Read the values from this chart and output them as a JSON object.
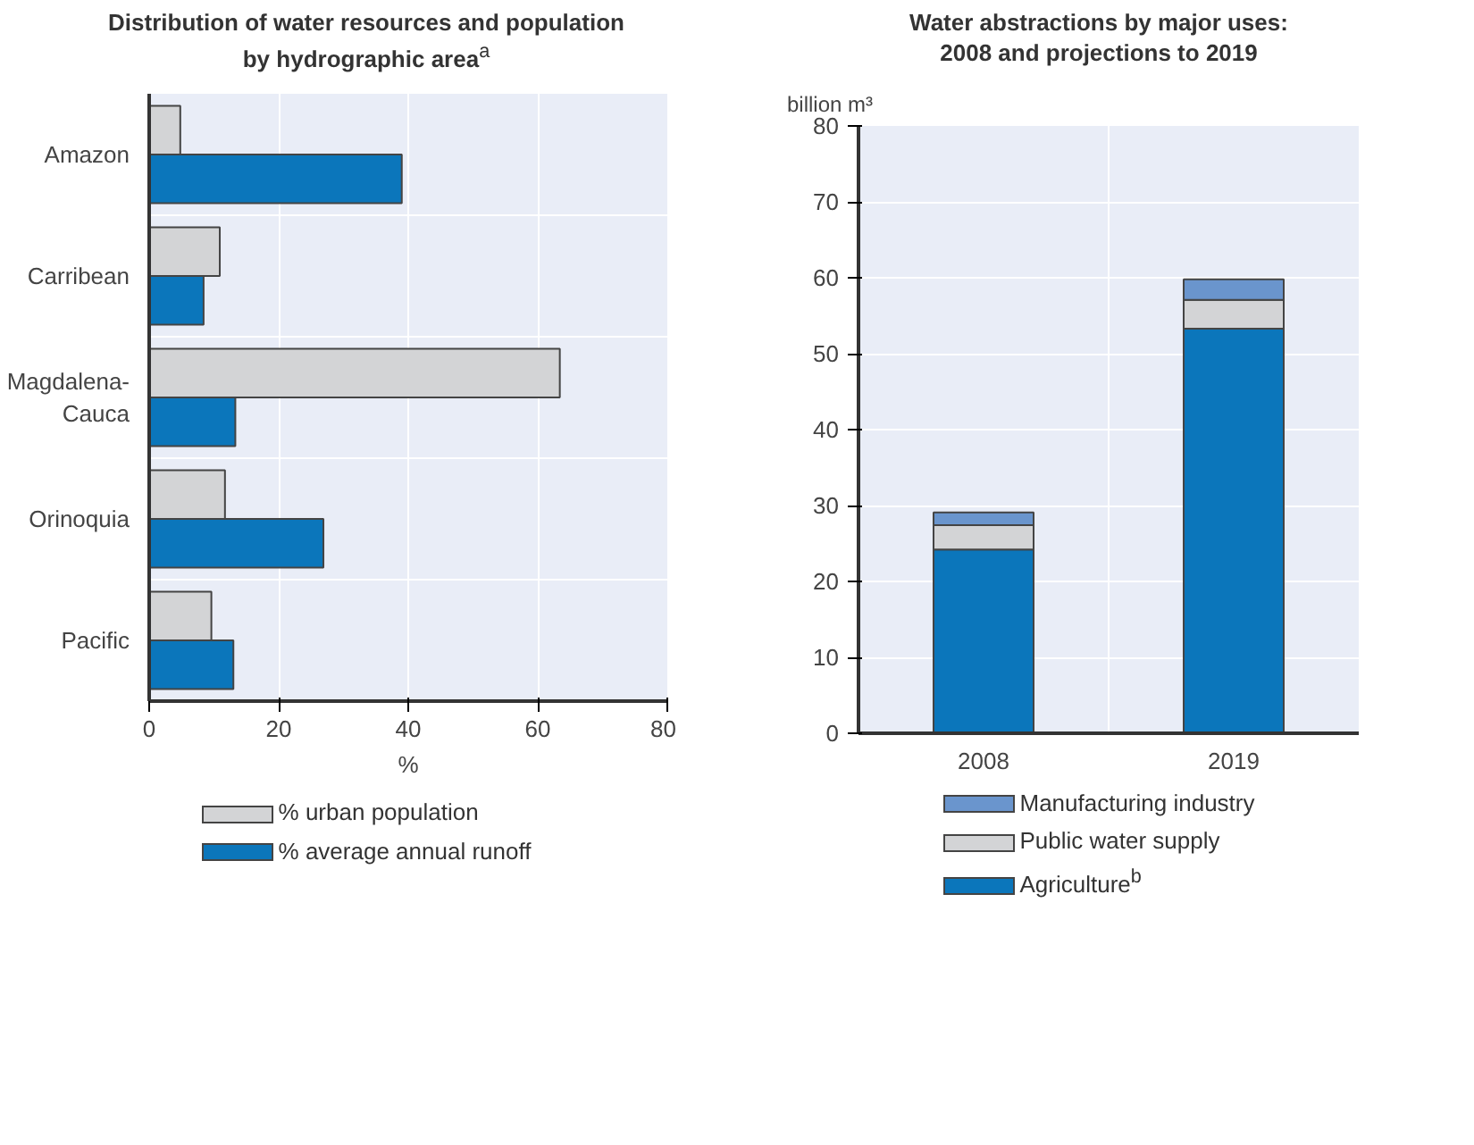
{
  "chart_data": [
    {
      "type": "bar",
      "orientation": "horizontal",
      "title": "Distribution of water resources and population\nby hydrographic area$^{a}$",
      "xlabel": "%",
      "categories": [
        "Amazon",
        "Carribean",
        "Magdalena-\nCauca",
        "Orinoquia",
        "Pacific"
      ],
      "series": [
        {
          "name": "% urban population",
          "color": "#d3d4d6",
          "values": [
            4.8,
            10.9,
            63.4,
            11.7,
            9.6
          ]
        },
        {
          "name": "% average annual runoff",
          "color": "#0b76bb",
          "values": [
            39,
            8.4,
            13.3,
            26.9,
            13.0
          ]
        }
      ],
      "xlim": [
        0,
        80
      ],
      "xticks": [
        0,
        20,
        40,
        60,
        80
      ],
      "grid": "x",
      "legend": "bottom"
    },
    {
      "type": "bar",
      "stacked": true,
      "title": "Water abstractions by major uses:\n2008 and projections to 2019",
      "ylabel": "billion m³",
      "categories": [
        "2008",
        "2019"
      ],
      "series": [
        {
          "name": "Agriculture$^{b}$",
          "color": "#0b76bb",
          "values": [
            24.2,
            53.3
          ]
        },
        {
          "name": "Public water supply",
          "color": "#d3d4d6",
          "values": [
            3.2,
            3.8
          ]
        },
        {
          "name": "Manufacturing industry",
          "color": "#6a95cd",
          "values": [
            1.7,
            2.7
          ]
        }
      ],
      "ylim": [
        0,
        80
      ],
      "yticks": [
        0,
        10,
        20,
        30,
        40,
        50,
        60,
        70,
        80
      ],
      "grid": "y",
      "legend": "bottom"
    }
  ]
}
